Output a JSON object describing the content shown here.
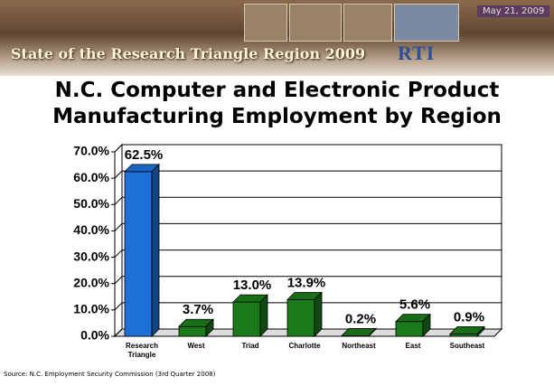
{
  "header": {
    "title": "State of the Research Triangle Region 2009",
    "date": "May 21, 2009",
    "logo": "RTI"
  },
  "chart_data": {
    "type": "bar",
    "title": "N.C. Computer and Electronic Product Manufacturing Employment by Region",
    "categories": [
      "Research Triangle",
      "West",
      "Triad",
      "Charlotte",
      "Northeast",
      "East",
      "Southeast"
    ],
    "values": [
      62.5,
      3.7,
      13.0,
      13.9,
      0.2,
      5.6,
      0.9
    ],
    "value_labels": [
      "62.5%",
      "3.7%",
      "13.0%",
      "13.9%",
      "0.2%",
      "5.6%",
      "0.9%"
    ],
    "colors": [
      "#1f6fd8",
      "#1a7a1a",
      "#1a7a1a",
      "#1a7a1a",
      "#1a7a1a",
      "#1a7a1a",
      "#1a7a1a"
    ],
    "ylim": [
      0,
      70
    ],
    "yticks": [
      {
        "value": 0,
        "label": "0.0%"
      },
      {
        "value": 10,
        "label": "10.0%"
      },
      {
        "value": 20,
        "label": "20.0%"
      },
      {
        "value": 30,
        "label": "30.0%"
      },
      {
        "value": 40,
        "label": "40.0%"
      },
      {
        "value": 50,
        "label": "50.0%"
      },
      {
        "value": 60,
        "label": "60.0%"
      },
      {
        "value": 70,
        "label": "70.0%"
      }
    ],
    "grid": true
  },
  "source": "Source: N.C. Employment Security Commission (3rd Quarter 2008)"
}
